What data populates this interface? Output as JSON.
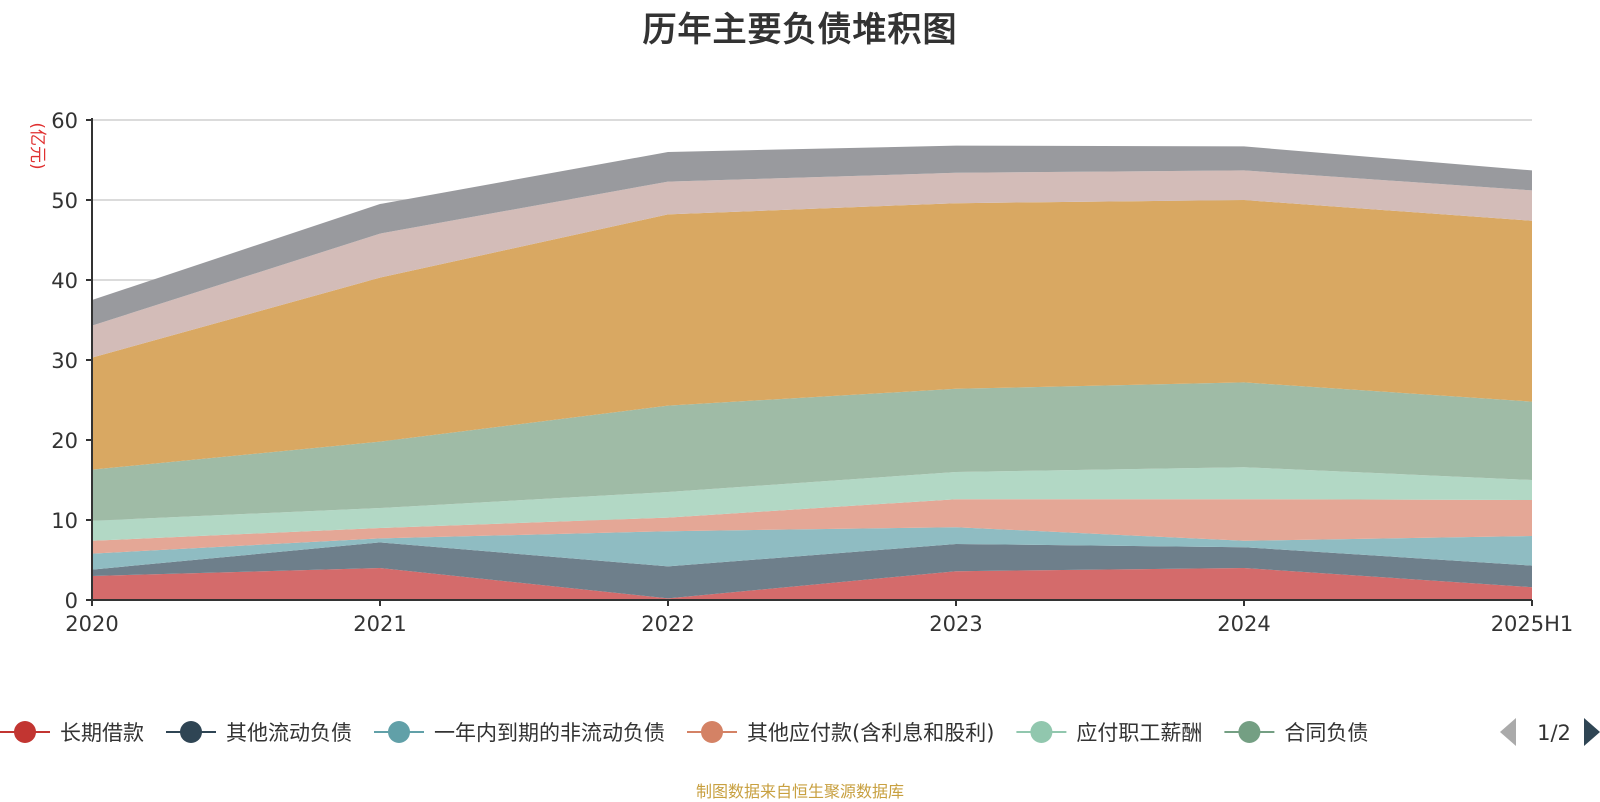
{
  "title": "历年主要负债堆积图",
  "source": "制图数据来自恒生聚源数据库",
  "chart_data": {
    "type": "area",
    "stacked": true,
    "title": "历年主要负债堆积图",
    "ylabel": "(亿元)",
    "xlabel": "",
    "categories": [
      "2020",
      "2021",
      "2022",
      "2023",
      "2024",
      "2025H1"
    ],
    "ylim": [
      0,
      60
    ],
    "yticks": [
      0,
      10,
      20,
      30,
      40,
      50,
      60
    ],
    "grid": true,
    "legend_position": "bottom",
    "legend_page": "1/2",
    "series": [
      {
        "name": "长期借款",
        "color": "#d46b6b",
        "legend_color": "#c23531",
        "values": [
          3.0,
          4.0,
          0.2,
          3.6,
          4.0,
          1.6
        ]
      },
      {
        "name": "其他流动负债",
        "color": "#6e7f8b",
        "legend_color": "#2f4554",
        "values": [
          0.8,
          3.2,
          4.0,
          3.4,
          2.6,
          2.7
        ]
      },
      {
        "name": "一年内到期的非流动负债",
        "color": "#8fbcc2",
        "legend_color": "#61a0a8",
        "values": [
          2.0,
          0.5,
          4.4,
          2.1,
          0.8,
          3.7
        ]
      },
      {
        "name": "其他应付款(含利息和股利)",
        "color": "#e4a796",
        "legend_color": "#d48265",
        "values": [
          1.6,
          1.3,
          1.7,
          3.5,
          5.2,
          4.5
        ]
      },
      {
        "name": "应付职工薪酬",
        "color": "#b2d8c5",
        "legend_color": "#91c7ae",
        "values": [
          2.5,
          2.5,
          3.2,
          3.4,
          4.0,
          2.5
        ]
      },
      {
        "name": "合同负债",
        "color": "#9fbba6",
        "legend_color": "#749f83",
        "values": [
          6.4,
          8.3,
          10.8,
          10.4,
          10.6,
          9.8
        ]
      },
      {
        "values": [
          14.0,
          20.5,
          23.9,
          23.2,
          22.8,
          22.6
        ],
        "color": "#d9a862"
      },
      {
        "values": [
          4.0,
          5.5,
          4.1,
          3.8,
          3.7,
          3.8
        ],
        "color": "#d3bcb8"
      },
      {
        "values": [
          3.2,
          3.7,
          3.7,
          3.4,
          3.0,
          2.5
        ],
        "color": "#999a9e"
      }
    ]
  }
}
